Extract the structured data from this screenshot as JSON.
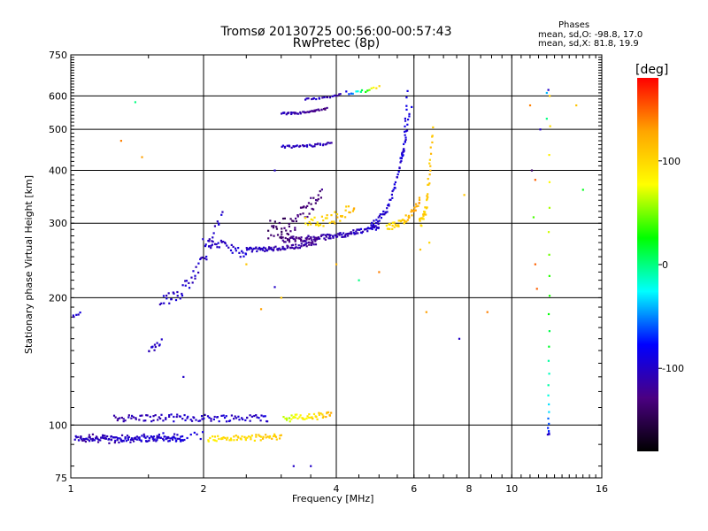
{
  "chart_data": {
    "type": "scatter",
    "title": "Tromsø 20130725 00:56:00-00:57:43",
    "subtitle": "RwPretec (8p)",
    "xlabel": "Frequency [MHz]",
    "ylabel": "Stationary phase Virtual Height [km]",
    "x_scale": "log",
    "y_scale": "log",
    "xlim": [
      1,
      16
    ],
    "ylim": [
      75,
      750
    ],
    "x_ticks": [
      1,
      2,
      4,
      6,
      8,
      10,
      16
    ],
    "y_ticks": [
      75,
      100,
      200,
      300,
      400,
      500,
      600,
      750
    ],
    "x_grid": [
      2,
      4,
      6,
      8,
      10
    ],
    "y_grid": [
      100,
      200,
      300,
      400,
      500,
      600
    ],
    "grid": true,
    "legend": {
      "title": "Phases",
      "lines": [
        "mean, sd,O: -98.8, 17.0",
        "mean, sd,X: 81.8, 19.9"
      ]
    },
    "colorbar": {
      "label": "[deg]",
      "range": [
        -180,
        180
      ],
      "ticks": [
        100,
        0,
        -100
      ],
      "colormap": [
        "#000000",
        "#4b0082",
        "#0000ff",
        "#00ffff",
        "#00ff00",
        "#ffff00",
        "#ffa500",
        "#ff0000"
      ]
    },
    "traces": [
      {
        "f": [
          1.02,
          1.8
        ],
        "h": [
          93,
          93
        ],
        "phase": [
          -105,
          -95
        ],
        "n": 120,
        "spread": 1.5
      },
      {
        "f": [
          1.05,
          2.0
        ],
        "h": [
          93,
          94
        ],
        "phase": [
          -115,
          -90
        ],
        "n": 40,
        "spread": 2.5
      },
      {
        "f": [
          1.25,
          2.8
        ],
        "h": [
          104,
          104
        ],
        "phase": [
          -110,
          -95
        ],
        "n": 100,
        "spread": 2
      },
      {
        "f": [
          2.05,
          3.0
        ],
        "h": [
          93,
          94
        ],
        "phase": [
          90,
          110
        ],
        "n": 60,
        "spread": 1.5
      },
      {
        "f": [
          3.05,
          3.9
        ],
        "h": [
          104,
          106
        ],
        "phase": [
          60,
          120
        ],
        "n": 45,
        "spread": 2
      },
      {
        "f": [
          1.0,
          1.05
        ],
        "h": [
          180,
          185
        ],
        "phase": [
          -100,
          -100
        ],
        "n": 6,
        "spread": 2
      },
      {
        "f": [
          1.5,
          1.6
        ],
        "h": [
          150,
          158
        ],
        "phase": [
          -100,
          -100
        ],
        "n": 12,
        "spread": 3
      },
      {
        "f": [
          1.6,
          2.2
        ],
        "h": [
          200,
          320
        ],
        "phase": [
          -100,
          -100
        ],
        "n": 50,
        "spread": 8
      },
      {
        "f": [
          2.0,
          2.5
        ],
        "h": [
          270,
          250
        ],
        "phase": [
          -105,
          -95
        ],
        "n": 35,
        "spread": 6
      },
      {
        "f": [
          2.5,
          3.6
        ],
        "h": [
          260,
          270
        ],
        "phase": [
          -100,
          -120
        ],
        "n": 80,
        "spread": 3
      },
      {
        "f": [
          3.0,
          5.0
        ],
        "h": [
          275,
          295
        ],
        "phase": [
          -130,
          -95
        ],
        "n": 120,
        "spread": 4
      },
      {
        "f": [
          4.8,
          5.9
        ],
        "h": [
          300,
          560
        ],
        "phase": [
          -100,
          -95
        ],
        "n": 60,
        "spread": 6
      },
      {
        "f": [
          5.2,
          6.2
        ],
        "h": [
          295,
          340
        ],
        "phase": [
          90,
          130
        ],
        "n": 50,
        "spread": 5
      },
      {
        "f": [
          6.2,
          6.6
        ],
        "h": [
          300,
          500
        ],
        "phase": [
          100,
          110
        ],
        "n": 40,
        "spread": 8
      },
      {
        "f": [
          3.0,
          3.8
        ],
        "h": [
          545,
          560
        ],
        "phase": [
          -100,
          -130
        ],
        "n": 40,
        "spread": 3
      },
      {
        "f": [
          3.0,
          3.9
        ],
        "h": [
          455,
          465
        ],
        "phase": [
          -100,
          -110
        ],
        "n": 35,
        "spread": 3
      },
      {
        "f": [
          3.4,
          4.1
        ],
        "h": [
          590,
          605
        ],
        "phase": [
          -100,
          -110
        ],
        "n": 20,
        "spread": 2
      },
      {
        "f": [
          4.2,
          5.0
        ],
        "h": [
          610,
          630
        ],
        "phase": [
          -80,
          100
        ],
        "n": 15,
        "spread": 5
      },
      {
        "f": [
          2.8,
          3.7
        ],
        "h": [
          290,
          360
        ],
        "phase": [
          -140,
          -130
        ],
        "n": 60,
        "spread": 15
      },
      {
        "f": [
          3.4,
          4.4
        ],
        "h": [
          300,
          330
        ],
        "phase": [
          90,
          120
        ],
        "n": 40,
        "spread": 10
      },
      {
        "f": [
          5.6,
          5.8
        ],
        "h": [
          430,
          620
        ],
        "phase": [
          -95,
          -95
        ],
        "n": 20,
        "spread": 6
      },
      {
        "f": [
          12.1,
          12.2
        ],
        "h": [
          95,
          600
        ],
        "phase": [
          -100,
          100
        ],
        "n": 25,
        "spread": 0
      }
    ],
    "points": [
      [
        1.3,
        470,
        140
      ],
      [
        1.4,
        580,
        0
      ],
      [
        1.45,
        430,
        130
      ],
      [
        2.9,
        400,
        -100
      ],
      [
        4.0,
        240,
        120
      ],
      [
        5.0,
        230,
        140
      ],
      [
        6.2,
        260,
        110
      ],
      [
        6.5,
        270,
        100
      ],
      [
        6.4,
        185,
        130
      ],
      [
        7.6,
        160,
        -100
      ],
      [
        7.8,
        350,
        110
      ],
      [
        8.8,
        185,
        140
      ],
      [
        11.0,
        570,
        140
      ],
      [
        11.1,
        400,
        -140
      ],
      [
        11.3,
        380,
        150
      ],
      [
        11.2,
        310,
        40
      ],
      [
        11.3,
        240,
        150
      ],
      [
        11.4,
        210,
        150
      ],
      [
        12.0,
        610,
        -40
      ],
      [
        11.6,
        500,
        -100
      ],
      [
        12.0,
        530,
        0
      ],
      [
        12.1,
        620,
        -100
      ],
      [
        14.0,
        570,
        110
      ],
      [
        14.5,
        360,
        20
      ],
      [
        3.2,
        80,
        -100
      ],
      [
        2.5,
        240,
        110
      ],
      [
        3.0,
        200,
        110
      ],
      [
        2.7,
        188,
        130
      ],
      [
        2.9,
        212,
        -100
      ],
      [
        3.5,
        80,
        -100
      ],
      [
        4.5,
        220,
        0
      ],
      [
        1.8,
        130,
        -100
      ]
    ]
  }
}
